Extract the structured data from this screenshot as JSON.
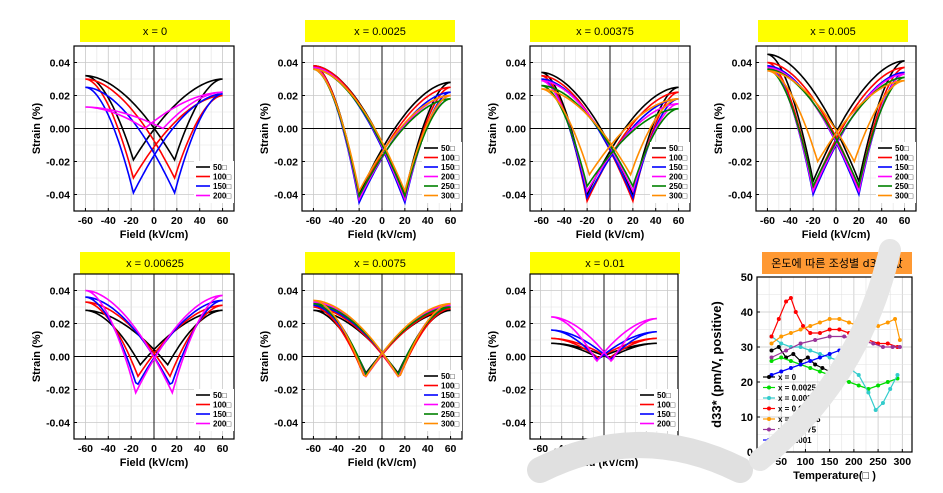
{
  "colors": {
    "title_bg": "#ffff00",
    "title_bg_last": "#ff9933",
    "t50": "#000000",
    "t100": "#ff0000",
    "t150": "#0000ff",
    "t200_magenta": "#ff00ff",
    "t250": "#008000",
    "t300": "#ff8c00",
    "grid": "#c8c8c8",
    "watermark": "#d9d9d9"
  },
  "chart_data": [
    {
      "type": "line",
      "title": "x = 0",
      "xlabel": "Field (kV/cm)",
      "ylabel": "Strain (%)",
      "xlim": [
        -70,
        70
      ],
      "ylim": [
        -0.05,
        0.05
      ],
      "xticks": [
        "-60",
        "-40",
        "-20",
        "0",
        "20",
        "40",
        "60"
      ],
      "yticks": [
        "0.04",
        "0.02",
        "0.00",
        "-0.02",
        "-0.04"
      ],
      "grid": true,
      "legend": "bottom-right",
      "series": [
        {
          "name": "50□",
          "color": "#000000",
          "emax": 60,
          "smax": 0.03,
          "sleft": 0.032,
          "smin": -0.019,
          "ec": 18
        },
        {
          "name": "100□",
          "color": "#ff0000",
          "emax": 60,
          "smax": 0.02,
          "sleft": 0.03,
          "smin": -0.03,
          "ec": 18
        },
        {
          "name": "150□",
          "color": "#0000ff",
          "emax": 60,
          "smax": 0.021,
          "sleft": 0.025,
          "smin": -0.039,
          "ec": 18
        },
        {
          "name": "200□",
          "color": "#ff00ff",
          "emax": 60,
          "smax": 0.022,
          "sleft": 0.013,
          "smin": 0.0,
          "ec": 8
        }
      ]
    },
    {
      "type": "line",
      "title": "x = 0.0025",
      "xlabel": "Field (kV/cm)",
      "ylabel": "Strain (%)",
      "xlim": [
        -70,
        70
      ],
      "ylim": [
        -0.05,
        0.05
      ],
      "xticks": [
        "-60",
        "-40",
        "-20",
        "0",
        "20",
        "40",
        "60"
      ],
      "yticks": [
        "0.04",
        "0.02",
        "0.00",
        "-0.02",
        "-0.04"
      ],
      "grid": true,
      "legend": "bottom-right",
      "series": [
        {
          "name": "50□",
          "color": "#000000",
          "emax": 60,
          "smax": 0.028,
          "sleft": 0.038,
          "smin": -0.04,
          "ec": 20
        },
        {
          "name": "100□",
          "color": "#ff0000",
          "emax": 60,
          "smax": 0.025,
          "sleft": 0.038,
          "smin": -0.042,
          "ec": 20
        },
        {
          "name": "150□",
          "color": "#0000ff",
          "emax": 60,
          "smax": 0.022,
          "sleft": 0.037,
          "smin": -0.045,
          "ec": 20
        },
        {
          "name": "200□",
          "color": "#ff00ff",
          "emax": 60,
          "smax": 0.02,
          "sleft": 0.037,
          "smin": -0.043,
          "ec": 20
        },
        {
          "name": "250□",
          "color": "#008000",
          "emax": 60,
          "smax": 0.018,
          "sleft": 0.036,
          "smin": -0.041,
          "ec": 20
        },
        {
          "name": "300□",
          "color": "#ff8c00",
          "emax": 60,
          "smax": 0.02,
          "sleft": 0.036,
          "smin": -0.038,
          "ec": 20
        }
      ]
    },
    {
      "type": "line",
      "title": "x = 0.00375",
      "xlabel": "Field (kV/cm)",
      "ylabel": "Strain (%)",
      "xlim": [
        -70,
        70
      ],
      "ylim": [
        -0.05,
        0.05
      ],
      "xticks": [
        "-60",
        "-40",
        "-20",
        "0",
        "20",
        "40",
        "60"
      ],
      "yticks": [
        "0.04",
        "0.02",
        "0.00",
        "-0.02",
        "-0.04"
      ],
      "grid": true,
      "legend": "bottom-right",
      "series": [
        {
          "name": "50□",
          "color": "#000000",
          "emax": 60,
          "smax": 0.025,
          "sleft": 0.034,
          "smin": -0.04,
          "ec": 20
        },
        {
          "name": "100□",
          "color": "#ff0000",
          "emax": 60,
          "smax": 0.022,
          "sleft": 0.032,
          "smin": -0.044,
          "ec": 20
        },
        {
          "name": "150□",
          "color": "#0000ff",
          "emax": 60,
          "smax": 0.018,
          "sleft": 0.03,
          "smin": -0.042,
          "ec": 20
        },
        {
          "name": "200□",
          "color": "#ff00ff",
          "emax": 60,
          "smax": 0.015,
          "sleft": 0.029,
          "smin": -0.038,
          "ec": 20
        },
        {
          "name": "250□",
          "color": "#008000",
          "emax": 60,
          "smax": 0.012,
          "sleft": 0.026,
          "smin": -0.035,
          "ec": 20
        },
        {
          "name": "300□",
          "color": "#ff8c00",
          "emax": 60,
          "smax": 0.018,
          "sleft": 0.024,
          "smin": -0.028,
          "ec": 18
        }
      ]
    },
    {
      "type": "line",
      "title": "x = 0.005",
      "xlabel": "Field (kV/cm)",
      "ylabel": "Strain (%)",
      "xlim": [
        -70,
        70
      ],
      "ylim": [
        -0.05,
        0.05
      ],
      "xticks": [
        "-60",
        "-40",
        "-20",
        "0",
        "20",
        "40",
        "60"
      ],
      "yticks": [
        "0.04",
        "0.02",
        "0.00",
        "-0.02",
        "-0.04"
      ],
      "grid": true,
      "legend": "bottom-right",
      "series": [
        {
          "name": "50□",
          "color": "#000000",
          "emax": 60,
          "smax": 0.041,
          "sleft": 0.045,
          "smin": -0.032,
          "ec": 20
        },
        {
          "name": "100□",
          "color": "#ff0000",
          "emax": 60,
          "smax": 0.037,
          "sleft": 0.04,
          "smin": -0.036,
          "ec": 20
        },
        {
          "name": "150□",
          "color": "#0000ff",
          "emax": 60,
          "smax": 0.034,
          "sleft": 0.038,
          "smin": -0.04,
          "ec": 20
        },
        {
          "name": "200□",
          "color": "#ff00ff",
          "emax": 60,
          "smax": 0.033,
          "sleft": 0.037,
          "smin": -0.038,
          "ec": 20
        },
        {
          "name": "250□",
          "color": "#008000",
          "emax": 60,
          "smax": 0.031,
          "sleft": 0.036,
          "smin": -0.035,
          "ec": 20
        },
        {
          "name": "300□",
          "color": "#ff8c00",
          "emax": 60,
          "smax": 0.029,
          "sleft": 0.035,
          "smin": -0.02,
          "ec": 16
        }
      ]
    },
    {
      "type": "line",
      "title": "x = 0.00625",
      "xlabel": "Field (kV/cm)",
      "ylabel": "Strain (%)",
      "xlim": [
        -70,
        70
      ],
      "ylim": [
        -0.05,
        0.05
      ],
      "xticks": [
        "-60",
        "-40",
        "-20",
        "0",
        "20",
        "40",
        "60"
      ],
      "yticks": [
        "0.04",
        "0.02",
        "0.00",
        "-0.02",
        "-0.04"
      ],
      "grid": true,
      "legend": "bottom-right",
      "series": [
        {
          "name": "50□",
          "color": "#000000",
          "emax": 60,
          "smax": 0.028,
          "sleft": 0.028,
          "smin": -0.005,
          "ec": 12
        },
        {
          "name": "100□",
          "color": "#ff0000",
          "emax": 60,
          "smax": 0.031,
          "sleft": 0.033,
          "smin": -0.012,
          "ec": 14
        },
        {
          "name": "150□",
          "color": "#0000ff",
          "emax": 60,
          "smax": 0.034,
          "sleft": 0.036,
          "smin": -0.018,
          "ec": 15
        },
        {
          "name": "200□",
          "color": "#ff00ff",
          "emax": 60,
          "smax": 0.037,
          "sleft": 0.04,
          "smin": -0.022,
          "ec": 16
        }
      ]
    },
    {
      "type": "line",
      "title": "x = 0.0075",
      "xlabel": "Field (kV/cm)",
      "ylabel": "Strain (%)",
      "xlim": [
        -70,
        70
      ],
      "ylim": [
        -0.05,
        0.05
      ],
      "xticks": [
        "-60",
        "-40",
        "-20",
        "0",
        "20",
        "40",
        "60"
      ],
      "yticks": [
        "0.04",
        "0.02",
        "0.00",
        "-0.02",
        "-0.04"
      ],
      "grid": true,
      "legend": "bottom-right",
      "series": [
        {
          "name": "50□",
          "color": "#000000",
          "emax": 60,
          "smax": 0.028,
          "sleft": 0.028,
          "smin": -0.01,
          "ec": 14
        },
        {
          "name": "100□",
          "color": "#ff0000",
          "emax": 60,
          "smax": 0.029,
          "sleft": 0.03,
          "smin": -0.013,
          "ec": 15
        },
        {
          "name": "150□",
          "color": "#0000ff",
          "emax": 60,
          "smax": 0.03,
          "sleft": 0.031,
          "smin": -0.011,
          "ec": 14
        },
        {
          "name": "200□",
          "color": "#ff00ff",
          "emax": 60,
          "smax": 0.031,
          "sleft": 0.033,
          "smin": -0.012,
          "ec": 14
        },
        {
          "name": "250□",
          "color": "#008000",
          "emax": 60,
          "smax": 0.03,
          "sleft": 0.032,
          "smin": -0.011,
          "ec": 14
        },
        {
          "name": "300□",
          "color": "#ff8c00",
          "emax": 60,
          "smax": 0.032,
          "sleft": 0.034,
          "smin": -0.013,
          "ec": 15
        }
      ]
    },
    {
      "type": "line",
      "title": "x = 0.01",
      "xlabel": "Field (kV/cm)",
      "ylabel": "Strain (%)",
      "xlim": [
        -70,
        70
      ],
      "ylim": [
        -0.05,
        0.05
      ],
      "xticks": [
        "-60",
        "-40",
        "-20",
        "0",
        "20",
        "40",
        "60"
      ],
      "yticks": [
        "0.04",
        "0.02",
        "0.00",
        "-0.02",
        "-0.04"
      ],
      "grid": true,
      "legend": "bottom-right",
      "series": [
        {
          "name": "50□",
          "color": "#000000",
          "emax": 50,
          "smax": 0.008,
          "sleft": 0.008,
          "smin": -0.001,
          "ec": 5
        },
        {
          "name": "100□",
          "color": "#ff0000",
          "emax": 50,
          "smax": 0.011,
          "sleft": 0.011,
          "smin": -0.001,
          "ec": 5
        },
        {
          "name": "150□",
          "color": "#0000ff",
          "emax": 50,
          "smax": 0.015,
          "sleft": 0.016,
          "smin": -0.002,
          "ec": 6
        },
        {
          "name": "200□",
          "color": "#ff00ff",
          "emax": 50,
          "smax": 0.023,
          "sleft": 0.024,
          "smin": -0.003,
          "ec": 7
        }
      ]
    },
    {
      "type": "line",
      "title": "온도에 따른 조성별 d33* 값",
      "xlabel": "Temperature(□ )",
      "ylabel": "d33* (pm/V, positive)",
      "xlim": [
        0,
        320
      ],
      "ylim": [
        0,
        50
      ],
      "xticks": [
        "0",
        "50",
        "100",
        "150",
        "200",
        "250",
        "300"
      ],
      "yticks": [
        "50",
        "40",
        "30",
        "20",
        "10",
        "0"
      ],
      "grid": true,
      "legend": "bottom-left",
      "series": [
        {
          "name": "x = 0",
          "color": "#000000",
          "x": [
            30,
            45,
            60,
            75,
            90,
            105,
            120,
            135,
            150,
            165,
            180
          ],
          "y": [
            29,
            30,
            27,
            28,
            26,
            27,
            25,
            24,
            23,
            24,
            24
          ]
        },
        {
          "name": "x = 0.0025",
          "color": "#00dd00",
          "x": [
            30,
            50,
            70,
            90,
            110,
            130,
            150,
            170,
            190,
            210,
            230,
            250,
            270,
            290
          ],
          "y": [
            26,
            27,
            26,
            25,
            24,
            23,
            22,
            21,
            20,
            19,
            18,
            19,
            20,
            21
          ]
        },
        {
          "name": "x = 0.00375",
          "color": "#33cccc",
          "x": [
            30,
            50,
            70,
            90,
            110,
            130,
            150,
            170,
            190,
            210,
            230,
            245,
            260,
            275,
            290
          ],
          "y": [
            33,
            31,
            30,
            30,
            29,
            28,
            27,
            26,
            24,
            22,
            17,
            12,
            14,
            18,
            22
          ]
        },
        {
          "name": "x = 0.005",
          "color": "#ff0000",
          "x": [
            30,
            45,
            60,
            70,
            80,
            95,
            110,
            130,
            150,
            170,
            190,
            210,
            230,
            250,
            270,
            290
          ],
          "y": [
            33,
            38,
            43,
            44,
            40,
            36,
            34,
            34,
            35,
            35,
            34,
            33,
            32,
            31,
            31,
            30
          ]
        },
        {
          "name": "x = 0.00625",
          "color": "#ff9900",
          "x": [
            30,
            50,
            70,
            90,
            110,
            130,
            150,
            170,
            190,
            210,
            230,
            250,
            270,
            285,
            295
          ],
          "y": [
            31,
            33,
            34,
            35,
            36,
            37,
            38,
            38,
            37,
            36,
            36,
            36,
            37,
            38,
            32
          ]
        },
        {
          "name": "x = 0.0075",
          "color": "#993399",
          "x": [
            30,
            60,
            90,
            120,
            150,
            180,
            210,
            240,
            260,
            280,
            295
          ],
          "y": [
            27,
            29,
            31,
            32,
            33,
            33,
            32,
            31,
            30,
            30,
            30
          ]
        },
        {
          "name": "x = 0.001",
          "color": "#0000ff",
          "x": [
            30,
            50,
            70,
            90,
            110,
            130,
            150,
            170,
            185
          ],
          "y": [
            22,
            23,
            24,
            25,
            26,
            27,
            28,
            29,
            30
          ]
        }
      ]
    }
  ]
}
